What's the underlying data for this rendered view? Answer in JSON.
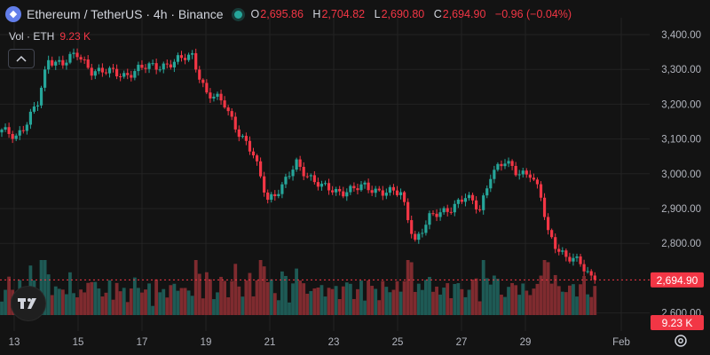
{
  "header": {
    "symbol_title": "Ethereum / TetherUS · 4h · Binance",
    "ohlc": [
      {
        "k": "O",
        "v": "2,695.86"
      },
      {
        "k": "H",
        "v": "2,704.82"
      },
      {
        "k": "L",
        "v": "2,690.80"
      },
      {
        "k": "C",
        "v": "2,694.90"
      },
      {
        "k": "",
        "v": "−0.96 (−0.04%)"
      }
    ],
    "vol_label": "Vol · ETH",
    "vol_value": "9.23 K"
  },
  "colors": {
    "background": "#131313",
    "up": "#26a69a",
    "down": "#f23645",
    "volume_up": "#1e5a55",
    "volume_down": "#7f2b2f",
    "grid": "#232323"
  },
  "chart_data": {
    "type": "candlestick",
    "timeframe": "4h",
    "price_axis": {
      "ticks": [
        "3,400.00",
        "3,300.00",
        "3,200.00",
        "3,100.00",
        "3,000.00",
        "2,900.00",
        "2,800.00",
        "2,600.00"
      ],
      "tick_values": [
        3400,
        3300,
        3200,
        3100,
        3000,
        2900,
        2800,
        2600
      ],
      "last_price": 2694.9,
      "last_price_label": "2,694.90",
      "last_volume_label": "9.23 K"
    },
    "time_axis": {
      "labels": [
        "13",
        "15",
        "17",
        "19",
        "21",
        "23",
        "25",
        "27",
        "29",
        "Feb"
      ]
    },
    "anchors": [
      [
        0,
        3120
      ],
      [
        4,
        3110
      ],
      [
        7,
        3150
      ],
      [
        10,
        3200
      ],
      [
        13,
        3330
      ],
      [
        17,
        3320
      ],
      [
        21,
        3340
      ],
      [
        25,
        3300
      ],
      [
        30,
        3290
      ],
      [
        34,
        3285
      ],
      [
        38,
        3300
      ],
      [
        43,
        3310
      ],
      [
        48,
        3320
      ],
      [
        53,
        3340
      ],
      [
        57,
        3230
      ],
      [
        62,
        3200
      ],
      [
        66,
        3120
      ],
      [
        70,
        3050
      ],
      [
        74,
        2930
      ],
      [
        78,
        2960
      ],
      [
        82,
        3030
      ],
      [
        85,
        3000
      ],
      [
        89,
        2960
      ],
      [
        93,
        2950
      ],
      [
        97,
        2955
      ],
      [
        101,
        2960
      ],
      [
        107,
        2950
      ],
      [
        111,
        2940
      ],
      [
        115,
        2810
      ],
      [
        119,
        2870
      ],
      [
        124,
        2900
      ],
      [
        129,
        2930
      ],
      [
        133,
        2900
      ],
      [
        136,
        3000
      ],
      [
        140,
        3030
      ],
      [
        143,
        3010
      ],
      [
        147,
        3000
      ],
      [
        150,
        2930
      ],
      [
        152,
        2830
      ],
      [
        154,
        2800
      ],
      [
        157,
        2760
      ],
      [
        161,
        2740
      ],
      [
        165,
        2694.9
      ]
    ],
    "candle_count": 166,
    "volume_ref": 9230
  }
}
